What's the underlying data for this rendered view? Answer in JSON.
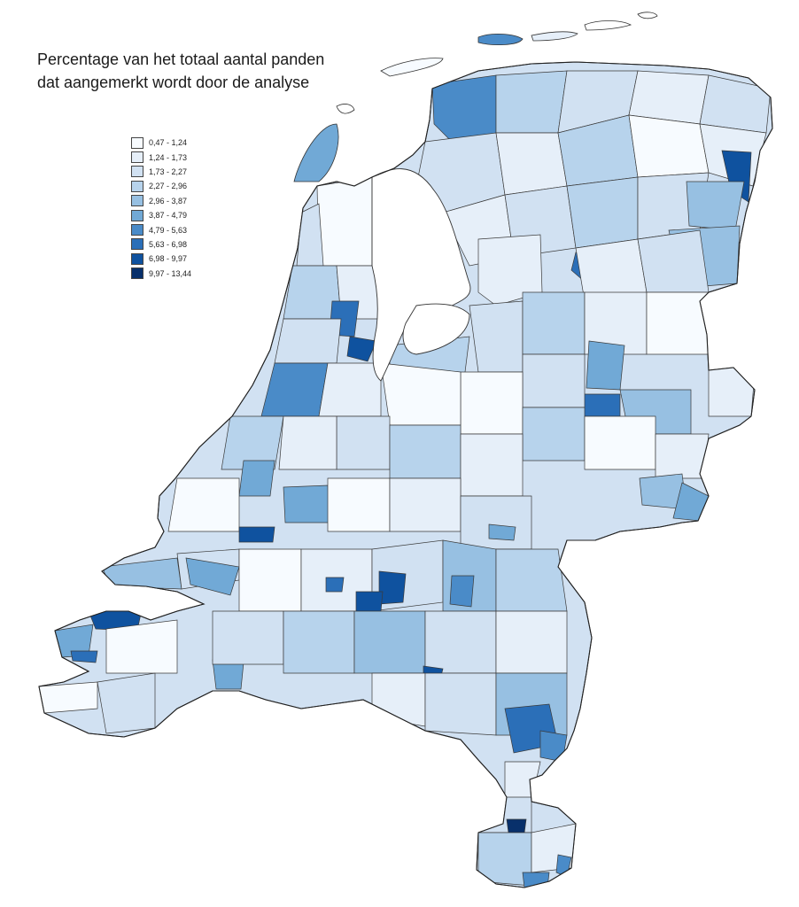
{
  "title": {
    "line1": "Percentage van het totaal aantal panden",
    "line2": "dat aangemerkt wordt door de analyse"
  },
  "legend": [
    {
      "label": "0,47 - 1,24",
      "color": "#f7fbff"
    },
    {
      "label": "1,24 - 1,73",
      "color": "#e6eff9"
    },
    {
      "label": "1,73 - 2,27",
      "color": "#d1e1f2"
    },
    {
      "label": "2,27 - 2,96",
      "color": "#b7d3ec"
    },
    {
      "label": "2,96 - 3,87",
      "color": "#97c0e2"
    },
    {
      "label": "3,87 - 4,79",
      "color": "#71a9d6"
    },
    {
      "label": "4,79 - 5,63",
      "color": "#4a8bc8"
    },
    {
      "label": "5,63 - 6,98",
      "color": "#2b6fb8"
    },
    {
      "label": "6,98 - 9,97",
      "color": "#0f529f"
    },
    {
      "label": "9,97 - 13,44",
      "color": "#08306b"
    }
  ]
}
